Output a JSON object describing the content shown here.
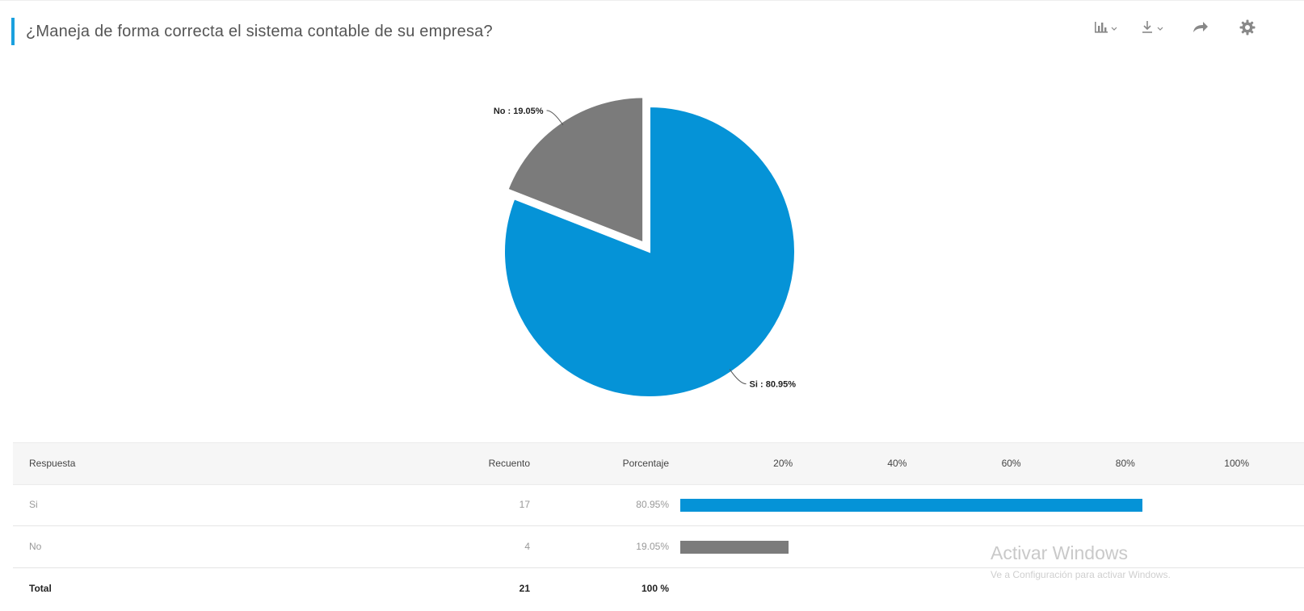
{
  "question": {
    "title": "¿Maneja de forma correcta el sistema contable de su empresa?"
  },
  "toolbar": {
    "items": [
      {
        "icon": "bar-chart-icon",
        "has_dropdown": true
      },
      {
        "icon": "download-icon",
        "has_dropdown": true
      },
      {
        "icon": "share-icon",
        "has_dropdown": false
      },
      {
        "icon": "gear-icon",
        "has_dropdown": false
      }
    ]
  },
  "chart_data": [
    {
      "type": "pie",
      "categories": [
        "Si",
        "No"
      ],
      "values": [
        80.95,
        19.05
      ],
      "labels": [
        "Si : 80.95%",
        "No : 19.05%"
      ],
      "colors": [
        "#0593d7",
        "#7b7b7b"
      ],
      "exploded": "No"
    },
    {
      "type": "table",
      "columns": [
        "Respuesta",
        "Recuento",
        "Porcentaje"
      ],
      "axis_ticks": [
        "20%",
        "40%",
        "60%",
        "80%",
        "100%"
      ],
      "xlim": [
        0,
        100
      ],
      "rows": [
        {
          "answer": "Si",
          "count": "17",
          "percent": "80.95%",
          "value": 80.95,
          "color": "#0593d7"
        },
        {
          "answer": "No",
          "count": "4",
          "percent": "19.05%",
          "value": 19.05,
          "color": "#7b7b7b"
        }
      ],
      "total": {
        "label": "Total",
        "count": "21",
        "percent": "100 %"
      }
    }
  ],
  "watermark": {
    "line1": "Activar Windows",
    "line2": "Ve a Configuración para activar Windows."
  }
}
